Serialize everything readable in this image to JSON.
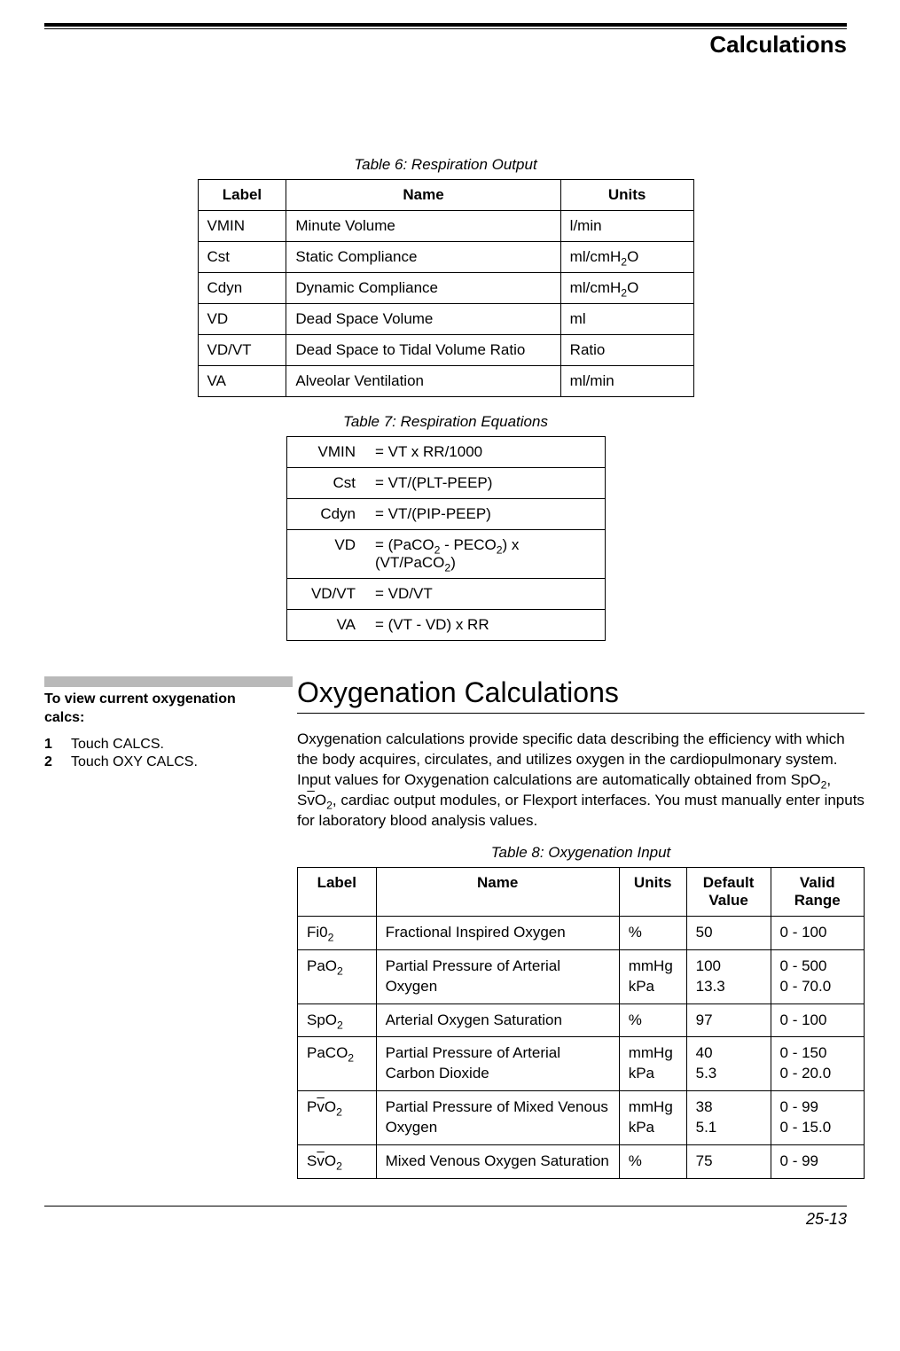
{
  "header": {
    "title": "Calculations"
  },
  "table6": {
    "caption": "Table 6: Respiration Output",
    "headers": [
      "Label",
      "Name",
      "Units"
    ],
    "rows": [
      {
        "label": "VMIN",
        "name": "Minute Volume",
        "units_html": "l/min"
      },
      {
        "label": "Cst",
        "name": "Static Compliance",
        "units_html": "ml/cmH<sub>2</sub>O"
      },
      {
        "label": "Cdyn",
        "name": "Dynamic Compliance",
        "units_html": "ml/cmH<sub>2</sub>O"
      },
      {
        "label": "VD",
        "name": "Dead Space Volume",
        "units_html": "ml"
      },
      {
        "label": "VD/VT",
        "name": "Dead Space to Tidal Volume Ratio",
        "units_html": "Ratio"
      },
      {
        "label": "VA",
        "name": "Alveolar Ventilation",
        "units_html": "ml/min"
      }
    ]
  },
  "table7": {
    "caption": "Table 7: Respiration Equations",
    "rows": [
      {
        "label": "VMIN",
        "eq_html": "= VT x RR/1000"
      },
      {
        "label": "Cst",
        "eq_html": "= VT/(PLT-PEEP)"
      },
      {
        "label": "Cdyn",
        "eq_html": "= VT/(PIP-PEEP)"
      },
      {
        "label": "VD",
        "eq_html": "= (PaCO<sub>2</sub> - PECO<sub>2</sub>) x (VT/PaCO<sub>2</sub>)"
      },
      {
        "label": "VD/VT",
        "eq_html": "= VD/VT"
      },
      {
        "label": "VA",
        "eq_html": "= (VT - VD) x RR"
      }
    ]
  },
  "section": {
    "heading": "Oxygenation Calculations",
    "para_html": "Oxygenation calculations provide specific data describing the efficiency with which the body acquires, circulates, and utilizes oxygen in the cardiopulmonary system. Input values for Oxygenation calculations are automatically obtained from SpO<sub>2</sub>, S<span class=\"overbar\">v</span>O<sub>2</sub>, cardiac output modules, or Flexport interfaces. You must manually enter inputs for laboratory blood analysis values."
  },
  "sidenote": {
    "title": "To view current oxygenation calcs:",
    "steps": [
      {
        "n": "1",
        "text": "Touch CALCS."
      },
      {
        "n": "2",
        "text": "Touch OXY CALCS."
      }
    ]
  },
  "table8": {
    "caption": "Table 8: Oxygenation Input",
    "headers": [
      "Label",
      "Name",
      "Units",
      "Default Value",
      "Valid Range"
    ],
    "rows": [
      {
        "label_html": "Fi0<sub>2</sub>",
        "name": "Fractional Inspired Oxygen",
        "units_html": "%",
        "def_html": "50",
        "range_html": "0 - 100"
      },
      {
        "label_html": "PaO<sub>2</sub>",
        "name": "Partial Pressure of Arterial Oxygen",
        "units_html": "mmHg<br>kPa",
        "def_html": "100<br>13.3",
        "range_html": "0 - 500<br>0 - 70.0"
      },
      {
        "label_html": "SpO<sub>2</sub>",
        "name": "Arterial Oxygen Saturation",
        "units_html": "%",
        "def_html": "97",
        "range_html": "0 - 100"
      },
      {
        "label_html": "PaCO<sub>2</sub>",
        "name": "Partial Pressure of Arterial Carbon Dioxide",
        "units_html": "mmHg<br>kPa",
        "def_html": "40<br>5.3",
        "range_html": "0 - 150<br>0 - 20.0"
      },
      {
        "label_html": "P<span class=\"overbar\">v</span>O<sub>2</sub>",
        "name": "Partial Pressure of Mixed Venous Oxygen",
        "units_html": "mmHg<br>kPa",
        "def_html": "38<br>5.1",
        "range_html": "0 - 99<br>0 - 15.0"
      },
      {
        "label_html": "S<span class=\"overbar\">v</span>O<sub>2</sub>",
        "name": "Mixed Venous Oxygen Saturation",
        "units_html": "%",
        "def_html": "75",
        "range_html": "0 - 99"
      }
    ]
  },
  "footer": {
    "page": "25-13"
  }
}
